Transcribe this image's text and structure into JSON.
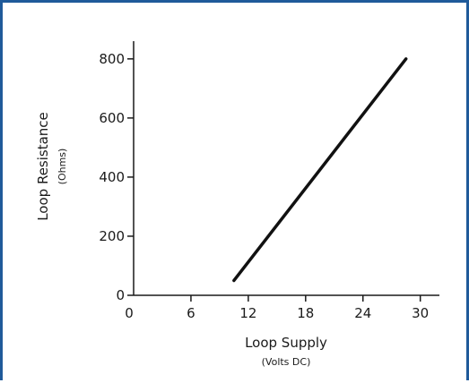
{
  "chart_data": {
    "type": "line",
    "title": "",
    "xlabel": "Loop Supply",
    "xlabel_sub": "(Volts DC)",
    "ylabel": "Loop Resistance",
    "ylabel_sub": "(Ohms)",
    "xlim": [
      0,
      32
    ],
    "ylim": [
      0,
      860
    ],
    "x_ticks": [
      0,
      6,
      12,
      18,
      24,
      30
    ],
    "y_ticks": [
      0,
      200,
      400,
      600,
      800
    ],
    "x_tick_labels": [
      "0",
      "6",
      "12",
      "18",
      "24",
      "30"
    ],
    "y_tick_labels": [
      "0",
      "200",
      "400",
      "600",
      "800"
    ],
    "grid": false,
    "legend": "none",
    "line_color": "#111111",
    "frame_color": "#1f5a9a",
    "series": [
      {
        "x": [
          10.5,
          28.5
        ],
        "values": [
          50,
          800
        ]
      }
    ]
  }
}
